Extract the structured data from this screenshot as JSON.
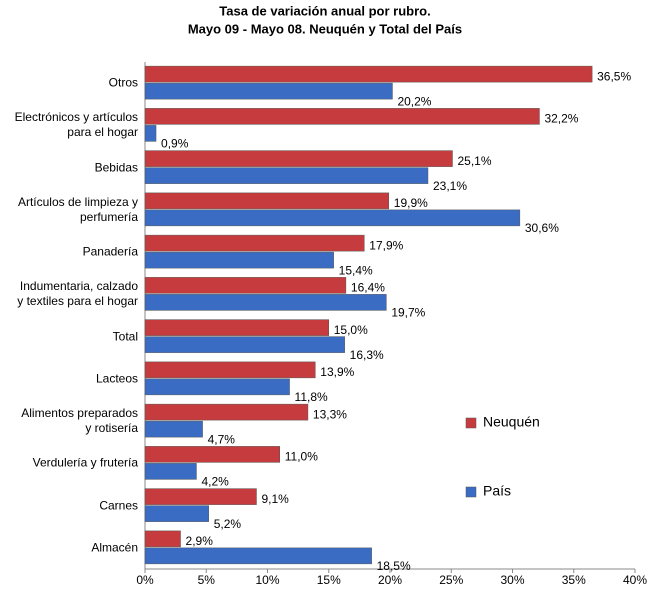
{
  "chart_data": {
    "type": "hbar",
    "title": "Tasa de variación anual por rubro.",
    "subtitle": "Mayo 09 - Mayo 08. Neuquén y Total del País",
    "categories": [
      "Otros",
      "Electrónicos y artículos\npara el hogar",
      "Bebidas",
      "Artículos de limpieza y\nperfumería",
      "Panadería",
      "Indumentaria, calzado\ny textiles para el hogar",
      "Total",
      "Lacteos",
      "Alimentos preparados\ny rotisería",
      "Verdulería y frutería",
      "Carnes",
      "Almacén"
    ],
    "series": [
      {
        "name": "Neuquén",
        "color": "#c63c3e",
        "values": [
          36.5,
          32.2,
          25.1,
          19.9,
          17.9,
          16.4,
          15.0,
          13.9,
          13.3,
          11.0,
          9.1,
          2.9
        ],
        "value_labels": [
          "36,5%",
          "32,2%",
          "25,1%",
          "19,9%",
          "17,9%",
          "16,4%",
          "15,0%",
          "13,9%",
          "13,3%",
          "11,0%",
          "9,1%",
          "2,9%"
        ]
      },
      {
        "name": "País",
        "color": "#3a6cc4",
        "values": [
          20.2,
          0.9,
          23.1,
          30.6,
          15.4,
          19.7,
          16.3,
          11.8,
          4.7,
          4.2,
          5.2,
          18.5
        ],
        "value_labels": [
          "20,2%",
          "0,9%",
          "23,1%",
          "30,6%",
          "15,4%",
          "19,7%",
          "16,3%",
          "11,8%",
          "4,7%",
          "4,2%",
          "5,2%",
          "18,5%"
        ]
      }
    ],
    "xlim": [
      0,
      40
    ],
    "xticks": [
      {
        "value": 0,
        "label": "0%"
      },
      {
        "value": 5,
        "label": "5%"
      },
      {
        "value": 10,
        "label": "10%"
      },
      {
        "value": 15,
        "label": "15%"
      },
      {
        "value": 20,
        "label": "20%"
      },
      {
        "value": 25,
        "label": "25%"
      },
      {
        "value": 30,
        "label": "30%"
      },
      {
        "value": 35,
        "label": "35%"
      },
      {
        "value": 40,
        "label": "40%"
      }
    ],
    "grid": false,
    "legend": "right"
  }
}
